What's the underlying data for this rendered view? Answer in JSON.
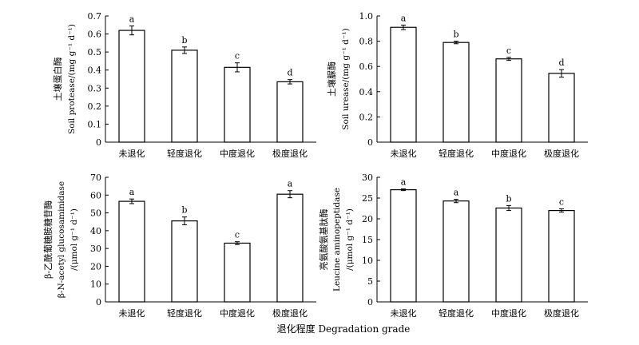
{
  "figure": {
    "xlabel": "退化程度 Degradation grade"
  },
  "chart_data": [
    {
      "type": "bar",
      "categories": [
        "未退化",
        "轻度退化",
        "中度退化",
        "极度退化"
      ],
      "values": [
        0.62,
        0.51,
        0.415,
        0.335
      ],
      "errors": [
        0.025,
        0.018,
        0.025,
        0.012
      ],
      "significance": [
        "a",
        "b",
        "c",
        "d"
      ],
      "ylabel_cn": "土壤蛋白酶",
      "ylabel_en": "Soil protease/(mg g⁻¹ d⁻¹)",
      "ylim": [
        0,
        0.7
      ],
      "yticks": [
        "0",
        "0.1",
        "0.2",
        "0.3",
        "0.4",
        "0.5",
        "0.6",
        "0.7"
      ],
      "ytick_values": [
        0,
        0.1,
        0.2,
        0.3,
        0.4,
        0.5,
        0.6,
        0.7
      ]
    },
    {
      "type": "bar",
      "categories": [
        "未退化",
        "轻度退化",
        "中度退化",
        "极度退化"
      ],
      "values": [
        0.91,
        0.79,
        0.66,
        0.545
      ],
      "errors": [
        0.018,
        0.01,
        0.012,
        0.03
      ],
      "significance": [
        "a",
        "b",
        "c",
        "d"
      ],
      "ylabel_cn": "土壤脲酶",
      "ylabel_en": "Soil urease/(mg g⁻¹ d⁻¹)",
      "ylim": [
        0,
        1.0
      ],
      "yticks": [
        "0",
        "0.2",
        "0.4",
        "0.6",
        "0.8",
        "1.0"
      ],
      "ytick_values": [
        0,
        0.2,
        0.4,
        0.6,
        0.8,
        1.0
      ]
    },
    {
      "type": "bar",
      "categories": [
        "未退化",
        "轻度退化",
        "中度退化",
        "极度退化"
      ],
      "values": [
        56.5,
        45.5,
        33,
        60.5
      ],
      "errors": [
        1.3,
        2.2,
        0.8,
        2.0
      ],
      "significance": [
        "a",
        "b",
        "c",
        "a"
      ],
      "ylabel_cn": "β-乙酰葡糖胺糖苷酶",
      "ylabel_en": "β-N-acetyl glucosaminidase",
      "ylabel_unit": "/(μmol g⁻¹ d⁻¹)",
      "ylim": [
        0,
        70
      ],
      "yticks": [
        "0",
        "10",
        "20",
        "30",
        "40",
        "50",
        "60",
        "70"
      ],
      "ytick_values": [
        0,
        10,
        20,
        30,
        40,
        50,
        60,
        70
      ]
    },
    {
      "type": "bar",
      "categories": [
        "未退化",
        "轻度退化",
        "中度退化",
        "极度退化"
      ],
      "values": [
        27,
        24.3,
        22.6,
        22.0
      ],
      "errors": [
        0.2,
        0.4,
        0.6,
        0.4
      ],
      "significance": [
        "a",
        "a",
        "b",
        "c"
      ],
      "ylabel_cn": "亮氨酸氨基肽酶",
      "ylabel_en": "Leucine aminopeptidase",
      "ylabel_unit": "/(μmol g⁻¹ d⁻¹)",
      "ylim": [
        0,
        30
      ],
      "yticks": [
        "0",
        "5",
        "10",
        "15",
        "20",
        "25",
        "30"
      ],
      "ytick_values": [
        0,
        5,
        10,
        15,
        20,
        25,
        30
      ]
    }
  ]
}
